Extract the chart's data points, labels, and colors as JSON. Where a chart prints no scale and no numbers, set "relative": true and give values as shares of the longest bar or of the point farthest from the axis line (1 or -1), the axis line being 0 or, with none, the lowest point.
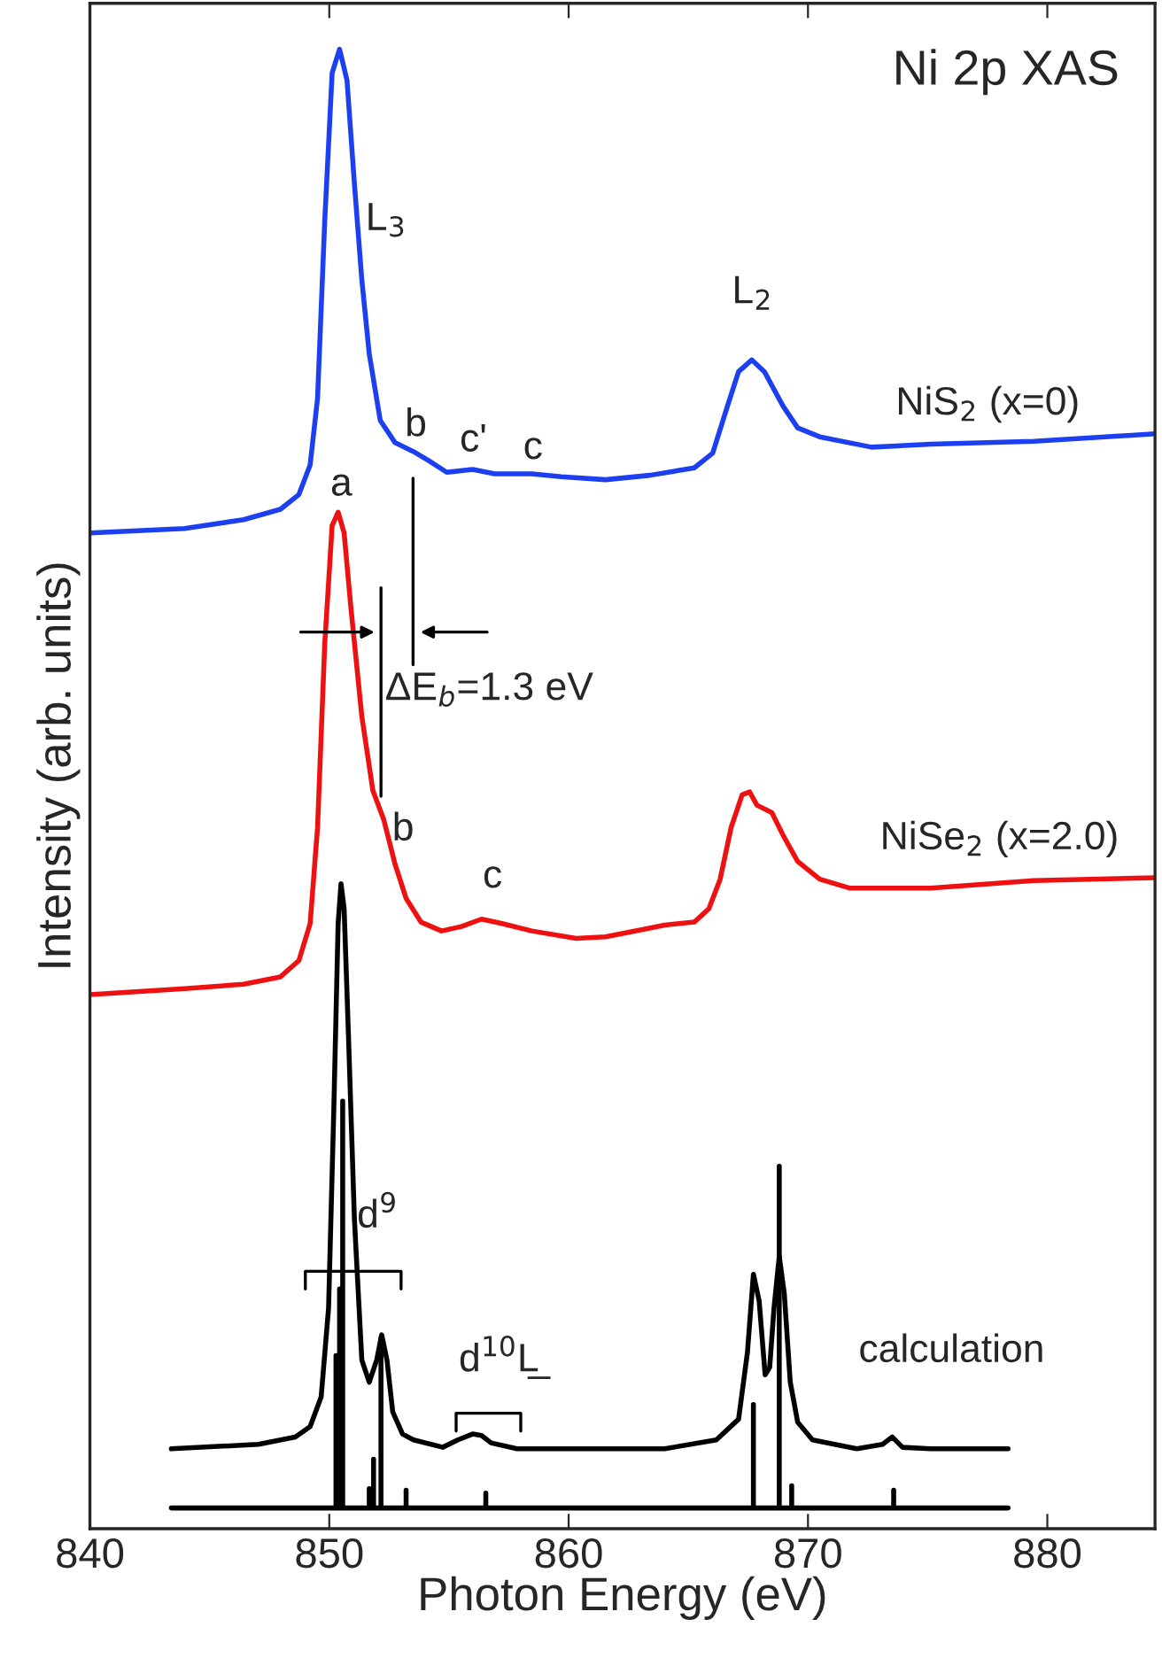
{
  "chart_data": {
    "type": "line",
    "title": "Ni 2p XAS",
    "xlabel": "Photon Energy (eV)",
    "ylabel": "Intensity (arb. units)",
    "relative": true,
    "xlim": [
      840,
      884.5
    ],
    "xticks": [
      840,
      850,
      860,
      870,
      880
    ],
    "grid": false,
    "legend": false,
    "marker": "none",
    "line_style": "solid",
    "series": [
      {
        "color": "#1c3ff0",
        "x": [
          840.0,
          843.95,
          846.42,
          847.96,
          848.73,
          849.2,
          849.51,
          849.81,
          850.12,
          850.43,
          850.74,
          851.05,
          851.36,
          851.67,
          852.13,
          852.75,
          853.52,
          854.14,
          854.91,
          855.99,
          856.91,
          858.46,
          859.69,
          861.54,
          863.4,
          865.25,
          866.02,
          866.64,
          867.1,
          867.65,
          868.18,
          868.95,
          869.57,
          870.49,
          872.65,
          875.12,
          879.44,
          884.5
        ],
        "values": [
          0.673,
          0.676,
          0.682,
          0.689,
          0.699,
          0.719,
          0.764,
          0.884,
          0.984,
          1.0,
          0.979,
          0.909,
          0.844,
          0.794,
          0.749,
          0.734,
          0.728,
          0.722,
          0.714,
          0.716,
          0.713,
          0.713,
          0.711,
          0.709,
          0.712,
          0.717,
          0.727,
          0.759,
          0.782,
          0.79,
          0.782,
          0.759,
          0.744,
          0.738,
          0.731,
          0.733,
          0.735,
          0.74
        ]
      },
      {
        "color": "#ee1111",
        "x": [
          840.0,
          843.95,
          846.42,
          847.96,
          848.73,
          849.2,
          849.51,
          849.81,
          850.12,
          850.37,
          850.62,
          850.9,
          851.36,
          851.82,
          852.28,
          852.75,
          853.21,
          853.83,
          854.69,
          855.52,
          856.36,
          857.22,
          858.46,
          860.31,
          861.54,
          863.09,
          864.01,
          865.25,
          865.86,
          866.33,
          866.79,
          867.25,
          867.56,
          867.87,
          868.49,
          868.95,
          869.57,
          870.49,
          871.73,
          875.12,
          879.44,
          884.5
        ],
        "values": [
          0.361,
          0.365,
          0.368,
          0.373,
          0.384,
          0.409,
          0.474,
          0.598,
          0.678,
          0.687,
          0.673,
          0.623,
          0.549,
          0.499,
          0.479,
          0.449,
          0.426,
          0.41,
          0.404,
          0.407,
          0.412,
          0.409,
          0.404,
          0.399,
          0.4,
          0.405,
          0.408,
          0.41,
          0.419,
          0.439,
          0.474,
          0.496,
          0.498,
          0.489,
          0.484,
          0.469,
          0.451,
          0.439,
          0.433,
          0.433,
          0.438,
          0.44
        ]
      },
      {
        "color": "#000000",
        "x": [
          843.4,
          847.04,
          848.58,
          849.2,
          849.66,
          849.97,
          850.19,
          850.37,
          850.49,
          850.62,
          850.8,
          851.05,
          851.36,
          851.67,
          851.98,
          852.19,
          852.41,
          852.65,
          853.06,
          853.52,
          854.75,
          855.37,
          855.99,
          856.36,
          856.76,
          857.84,
          864.01,
          866.17,
          867.1,
          867.47,
          867.72,
          867.96,
          868.21,
          868.4,
          868.58,
          868.8,
          869.01,
          869.26,
          869.57,
          870.19,
          872.04,
          873.12,
          873.52,
          873.95,
          875.12,
          878.36
        ],
        "values": [
          0.054,
          0.057,
          0.062,
          0.069,
          0.089,
          0.149,
          0.284,
          0.409,
          0.436,
          0.419,
          0.334,
          0.209,
          0.114,
          0.099,
          0.114,
          0.131,
          0.114,
          0.079,
          0.064,
          0.06,
          0.055,
          0.06,
          0.064,
          0.063,
          0.058,
          0.054,
          0.054,
          0.06,
          0.074,
          0.119,
          0.172,
          0.154,
          0.104,
          0.109,
          0.149,
          0.184,
          0.159,
          0.099,
          0.072,
          0.06,
          0.054,
          0.057,
          0.062,
          0.055,
          0.054,
          0.054
        ]
      },
      {
        "color": "#000000",
        "x": [
          843.4,
          850.28,
          850.28,
          850.28,
          850.43,
          850.43,
          850.43,
          850.56,
          850.56,
          850.56,
          851.67,
          851.67,
          851.67,
          851.85,
          851.85,
          851.85,
          852.16,
          852.16,
          852.16,
          853.21,
          853.21,
          853.21,
          856.54,
          856.54,
          856.54,
          867.72,
          867.72,
          867.72,
          868.8,
          868.8,
          868.8,
          869.32,
          869.32,
          869.32,
          873.58,
          873.58,
          873.58,
          878.36
        ],
        "values": [
          0.014,
          0.014,
          0.117,
          0.014,
          0.014,
          0.162,
          0.014,
          0.014,
          0.289,
          0.014,
          0.014,
          0.027,
          0.014,
          0.014,
          0.047,
          0.014,
          0.014,
          0.129,
          0.014,
          0.014,
          0.026,
          0.014,
          0.014,
          0.024,
          0.014,
          0.014,
          0.084,
          0.014,
          0.014,
          0.245,
          0.014,
          0.014,
          0.029,
          0.014,
          0.014,
          0.026,
          0.014,
          0.014
        ]
      }
    ],
    "annotations": [
      "L$_{3}$",
      "L$_{2}$",
      "b",
      "c'",
      "c",
      "a",
      "NiS$_{2}$ (x=0)",
      "ΔE$_{b}$=1.3 eV",
      "b",
      "c",
      "NiSe$_{2}$ (x=2.0)",
      "d$^{9}$",
      "d$^{10}$L̲",
      "calculation"
    ]
  }
}
